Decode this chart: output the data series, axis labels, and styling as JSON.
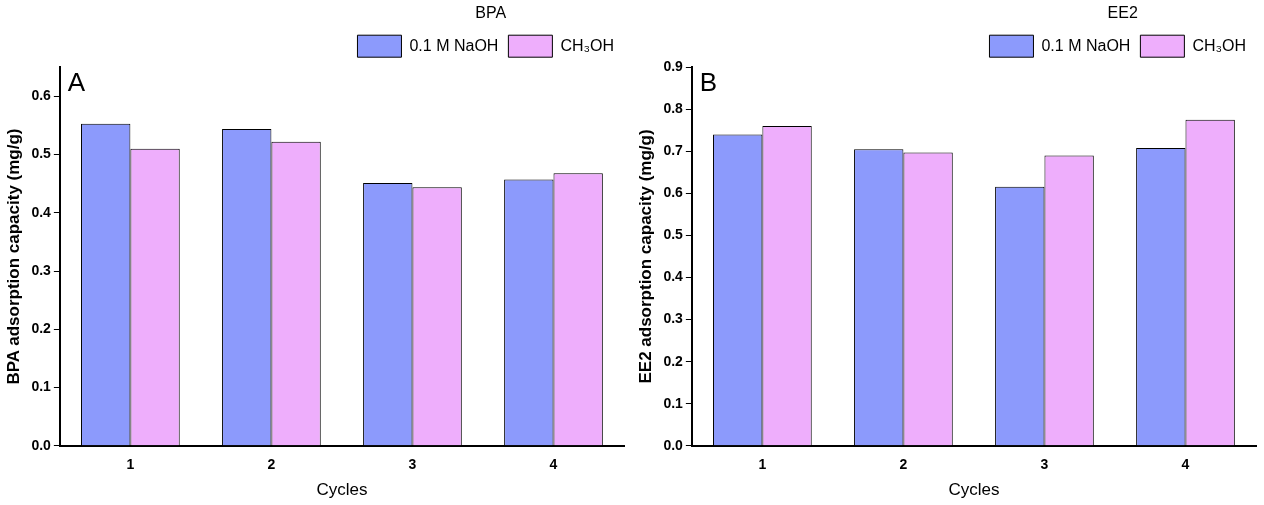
{
  "chart_data": [
    {
      "type": "bar",
      "annotations": [
        "A"
      ],
      "xlabel": "Cycles",
      "ylabel": "BPA adsorption capacity (mg/g)",
      "legend_title": "BPA",
      "categories": [
        "1",
        "2",
        "3",
        "4"
      ],
      "series": [
        {
          "name": "0.1 M NaOH",
          "color": "#8c9afc",
          "values": [
            0.553,
            0.544,
            0.451,
            0.457
          ]
        },
        {
          "name": "CH₃OH",
          "color": "#eeaefc",
          "values": [
            0.51,
            0.522,
            0.444,
            0.468
          ]
        }
      ],
      "ylim": [
        0,
        0.65
      ],
      "yticks": [
        {
          "value": 0,
          "label": "0.0"
        },
        0.1,
        0.2,
        0.3,
        0.4,
        0.5,
        0.6
      ],
      "grid": false,
      "legend": "top right"
    },
    {
      "type": "bar",
      "annotations": [
        "B"
      ],
      "xlabel": "Cycles",
      "ylabel": "EE2 adsorption capacity (mg/g)",
      "legend_title": "EE2",
      "categories": [
        "1",
        "2",
        "3",
        "4"
      ],
      "series": [
        {
          "name": "0.1 M NaOH",
          "color": "#8c9afc",
          "values": [
            0.74,
            0.705,
            0.616,
            0.708
          ]
        },
        {
          "name": "CH₃OH",
          "color": "#eeaefc",
          "values": [
            0.76,
            0.697,
            0.69,
            0.775
          ]
        }
      ],
      "ylim": [
        0,
        0.9
      ],
      "yticks": [
        {
          "value": 0,
          "label": "0.0"
        },
        0.1,
        0.2,
        0.3,
        0.4,
        0.5,
        0.6,
        0.7,
        0.8,
        0.9
      ],
      "grid": false,
      "legend": "top right"
    }
  ]
}
